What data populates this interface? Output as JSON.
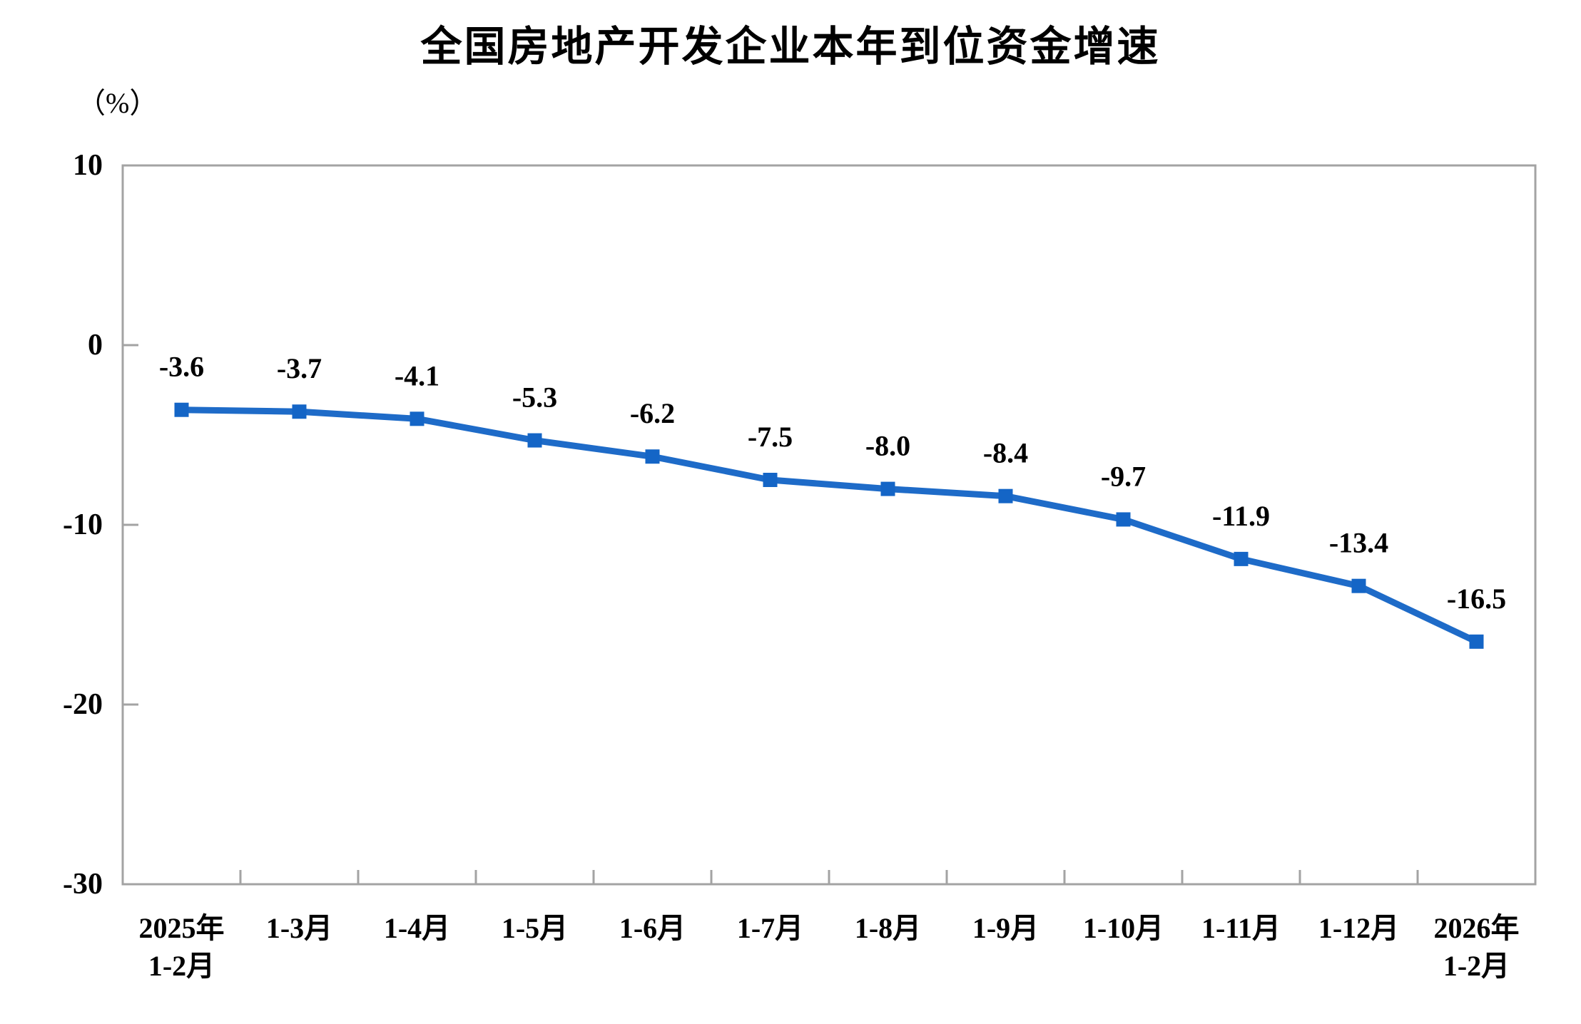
{
  "title": "全国房地产开发企业本年到位资金增速",
  "unit_label": "（%）",
  "chart_data": {
    "type": "line",
    "title": "全国房地产开发企业本年到位资金增速",
    "ylabel": "（%）",
    "xlabel": "",
    "categories": [
      "2025年\n1-2月",
      "1-3月",
      "1-4月",
      "1-5月",
      "1-6月",
      "1-7月",
      "1-8月",
      "1-9月",
      "1-10月",
      "1-11月",
      "1-12月",
      "2026年\n1-2月"
    ],
    "values": [
      -3.6,
      -3.7,
      -4.1,
      -5.3,
      -6.2,
      -7.5,
      -8.0,
      -8.4,
      -9.7,
      -11.9,
      -13.4,
      -16.5
    ],
    "data_labels": [
      "-3.6",
      "-3.7",
      "-4.1",
      "-5.3",
      "-6.2",
      "-7.5",
      "-8.0",
      "-8.4",
      "-9.7",
      "-11.9",
      "-13.4",
      "-16.5"
    ],
    "yticks": [
      10,
      0,
      -10,
      -20,
      -30
    ],
    "ylim": [
      -30,
      10
    ],
    "grid": false,
    "legend_position": "none",
    "marker": "square",
    "line_color": "#1e6bc8",
    "marker_color": "#1465c6",
    "axis_color": "#a3a3a3",
    "label_color": "#000000"
  }
}
